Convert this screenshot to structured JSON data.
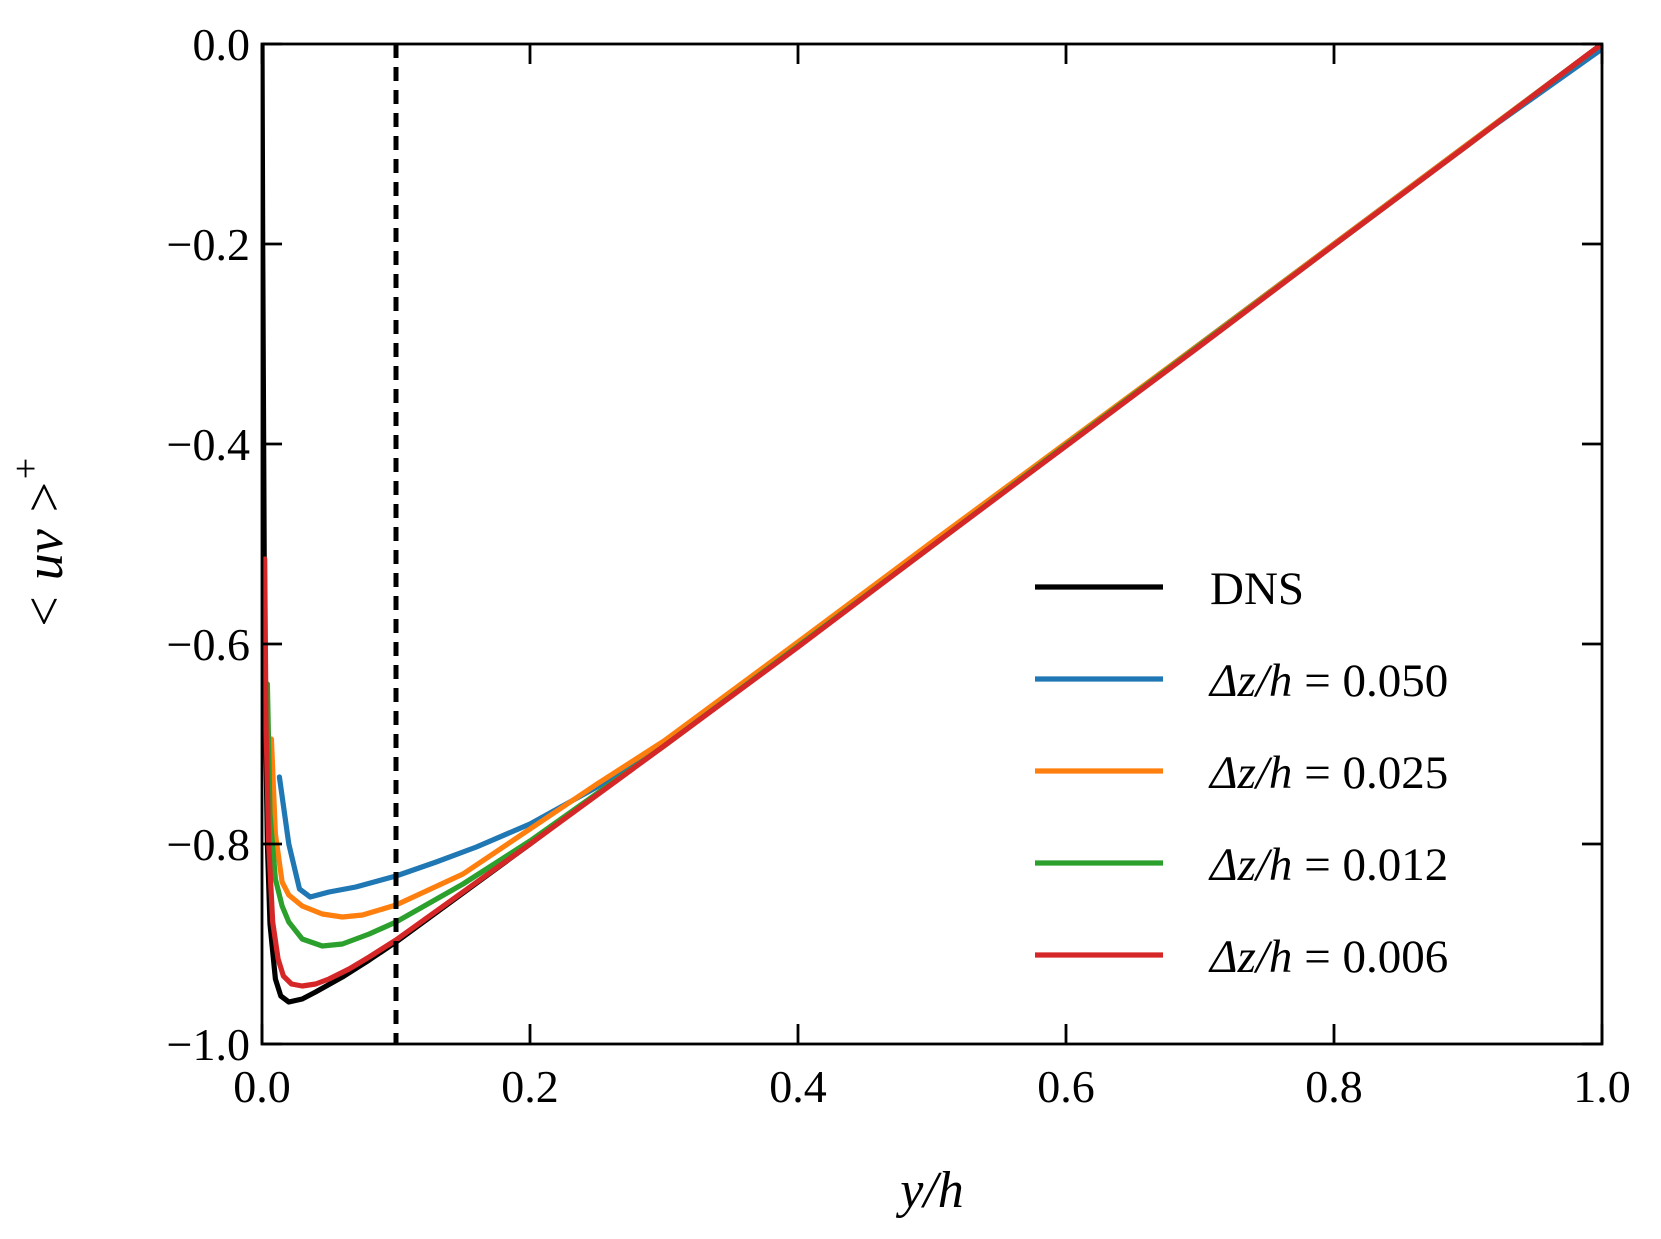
{
  "chart_data": {
    "type": "line",
    "title": "",
    "xlabel": "y/h",
    "ylabel": "< uv >+",
    "ylabel_main": "< uv >",
    "ylabel_sup": "+",
    "xlim": [
      0.0,
      1.0
    ],
    "ylim": [
      -1.0,
      0.0
    ],
    "xticks": [
      0.0,
      0.2,
      0.4,
      0.6,
      0.8,
      1.0
    ],
    "xtick_labels": [
      "0.0",
      "0.2",
      "0.4",
      "0.6",
      "0.8",
      "1.0"
    ],
    "yticks": [
      0.0,
      -0.2,
      -0.4,
      -0.6,
      -0.8,
      -1.0
    ],
    "ytick_labels": [
      "0.0",
      "−0.2",
      "−0.4",
      "−0.6",
      "−0.8",
      "−1.0"
    ],
    "grid": false,
    "legend_position": "lower-right",
    "reference_lines": [
      {
        "orientation": "vertical",
        "x": 0.1,
        "style": "dashed",
        "color": "#000000"
      }
    ],
    "series": [
      {
        "name": "DNS",
        "legend_label": "DNS",
        "color": "#000000",
        "x": [
          0.0,
          0.0005,
          0.002,
          0.004,
          0.006,
          0.01,
          0.014,
          0.02,
          0.03,
          0.04,
          0.06,
          0.08,
          0.1,
          0.2,
          0.3,
          0.4,
          0.5,
          0.6,
          0.7,
          0.8,
          0.9,
          1.0
        ],
        "y": [
          0.0,
          -0.2,
          -0.62,
          -0.8,
          -0.88,
          -0.935,
          -0.952,
          -0.958,
          -0.955,
          -0.948,
          -0.933,
          -0.916,
          -0.898,
          -0.8,
          -0.7,
          -0.6,
          -0.5,
          -0.4,
          -0.3,
          -0.2,
          -0.1,
          0.0
        ]
      },
      {
        "name": "Δz/h = 0.050",
        "legend_label": "Δz/h = 0.050",
        "legend_var": "Δz/h",
        "legend_value": "= 0.050",
        "color": "#1f77b4",
        "x": [
          0.013,
          0.02,
          0.028,
          0.036,
          0.05,
          0.07,
          0.1,
          0.13,
          0.16,
          0.2,
          0.25,
          0.3,
          0.4,
          0.5,
          0.6,
          0.7,
          0.8,
          0.9,
          1.0
        ],
        "y": [
          -0.733,
          -0.8,
          -0.845,
          -0.853,
          -0.848,
          -0.843,
          -0.832,
          -0.818,
          -0.803,
          -0.78,
          -0.743,
          -0.7,
          -0.6,
          -0.5,
          -0.4,
          -0.3,
          -0.2,
          -0.1,
          -0.005
        ]
      },
      {
        "name": "Δz/h = 0.025",
        "legend_label": "Δz/h = 0.025",
        "legend_var": "Δz/h",
        "legend_value": "= 0.025",
        "color": "#ff7f0e",
        "x": [
          0.007,
          0.01,
          0.015,
          0.02,
          0.03,
          0.045,
          0.06,
          0.075,
          0.1,
          0.15,
          0.2,
          0.25,
          0.3,
          0.4,
          0.5,
          0.6,
          0.7,
          0.8,
          0.9,
          1.0
        ],
        "y": [
          -0.695,
          -0.79,
          -0.838,
          -0.851,
          -0.862,
          -0.87,
          -0.873,
          -0.871,
          -0.861,
          -0.83,
          -0.785,
          -0.74,
          -0.697,
          -0.598,
          -0.498,
          -0.399,
          -0.3,
          -0.2,
          -0.1,
          0.0
        ]
      },
      {
        "name": "Δz/h = 0.012",
        "legend_label": "Δz/h = 0.012",
        "legend_var": "Δz/h",
        "legend_value": "= 0.012",
        "color": "#2ca02c",
        "x": [
          0.004,
          0.006,
          0.01,
          0.015,
          0.02,
          0.03,
          0.045,
          0.06,
          0.08,
          0.1,
          0.15,
          0.2,
          0.3,
          0.4,
          0.5,
          0.6,
          0.7,
          0.8,
          0.9,
          1.0
        ],
        "y": [
          -0.64,
          -0.77,
          -0.835,
          -0.862,
          -0.878,
          -0.895,
          -0.902,
          -0.9,
          -0.89,
          -0.878,
          -0.84,
          -0.797,
          -0.702,
          -0.602,
          -0.502,
          -0.401,
          -0.301,
          -0.201,
          -0.101,
          0.0
        ]
      },
      {
        "name": "Δz/h = 0.006",
        "legend_label": "Δz/h = 0.006",
        "legend_var": "Δz/h",
        "legend_value": "= 0.006",
        "color": "#d62728",
        "x": [
          0.002,
          0.003,
          0.005,
          0.008,
          0.012,
          0.016,
          0.022,
          0.03,
          0.04,
          0.05,
          0.065,
          0.08,
          0.1,
          0.2,
          0.3,
          0.4,
          0.5,
          0.6,
          0.7,
          0.8,
          0.9,
          0.99,
          1.0
        ],
        "y": [
          -0.515,
          -0.68,
          -0.8,
          -0.878,
          -0.915,
          -0.932,
          -0.94,
          -0.942,
          -0.94,
          -0.935,
          -0.925,
          -0.913,
          -0.896,
          -0.8,
          -0.702,
          -0.603,
          -0.502,
          -0.402,
          -0.302,
          -0.201,
          -0.101,
          -0.01,
          0.0
        ]
      }
    ]
  }
}
